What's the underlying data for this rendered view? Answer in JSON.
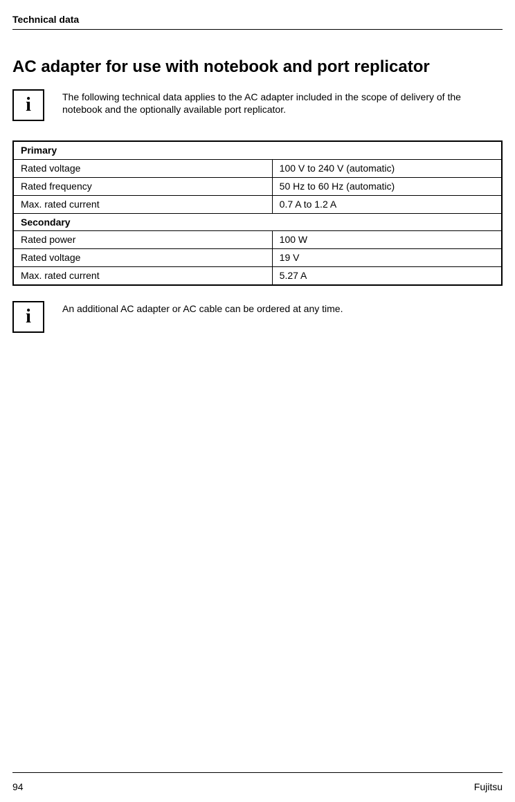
{
  "header": "Technical data",
  "title": "AC adapter for use with notebook and port replicator",
  "info1": "The following technical data applies to the AC adapter included in the scope of delivery of the notebook and the optionally available port replicator.",
  "info2": "An additional AC adapter or AC cable can be ordered at any time.",
  "iconGlyph": "i",
  "table": {
    "primary": "Primary",
    "secondary": "Secondary",
    "rows": [
      {
        "label": "Rated voltage",
        "value": "100 V to 240 V (automatic)"
      },
      {
        "label": "Rated frequency",
        "value": "50 Hz to 60 Hz (automatic)"
      },
      {
        "label": "Max. rated current",
        "value": "0.7 A to 1.2 A"
      }
    ],
    "rows2": [
      {
        "label": "Rated power",
        "value": "100 W"
      },
      {
        "label": "Rated voltage",
        "value": "19 V"
      },
      {
        "label": "Max. rated current",
        "value": "5.27 A"
      }
    ]
  },
  "footer": {
    "page": "94",
    "brand": "Fujitsu"
  }
}
